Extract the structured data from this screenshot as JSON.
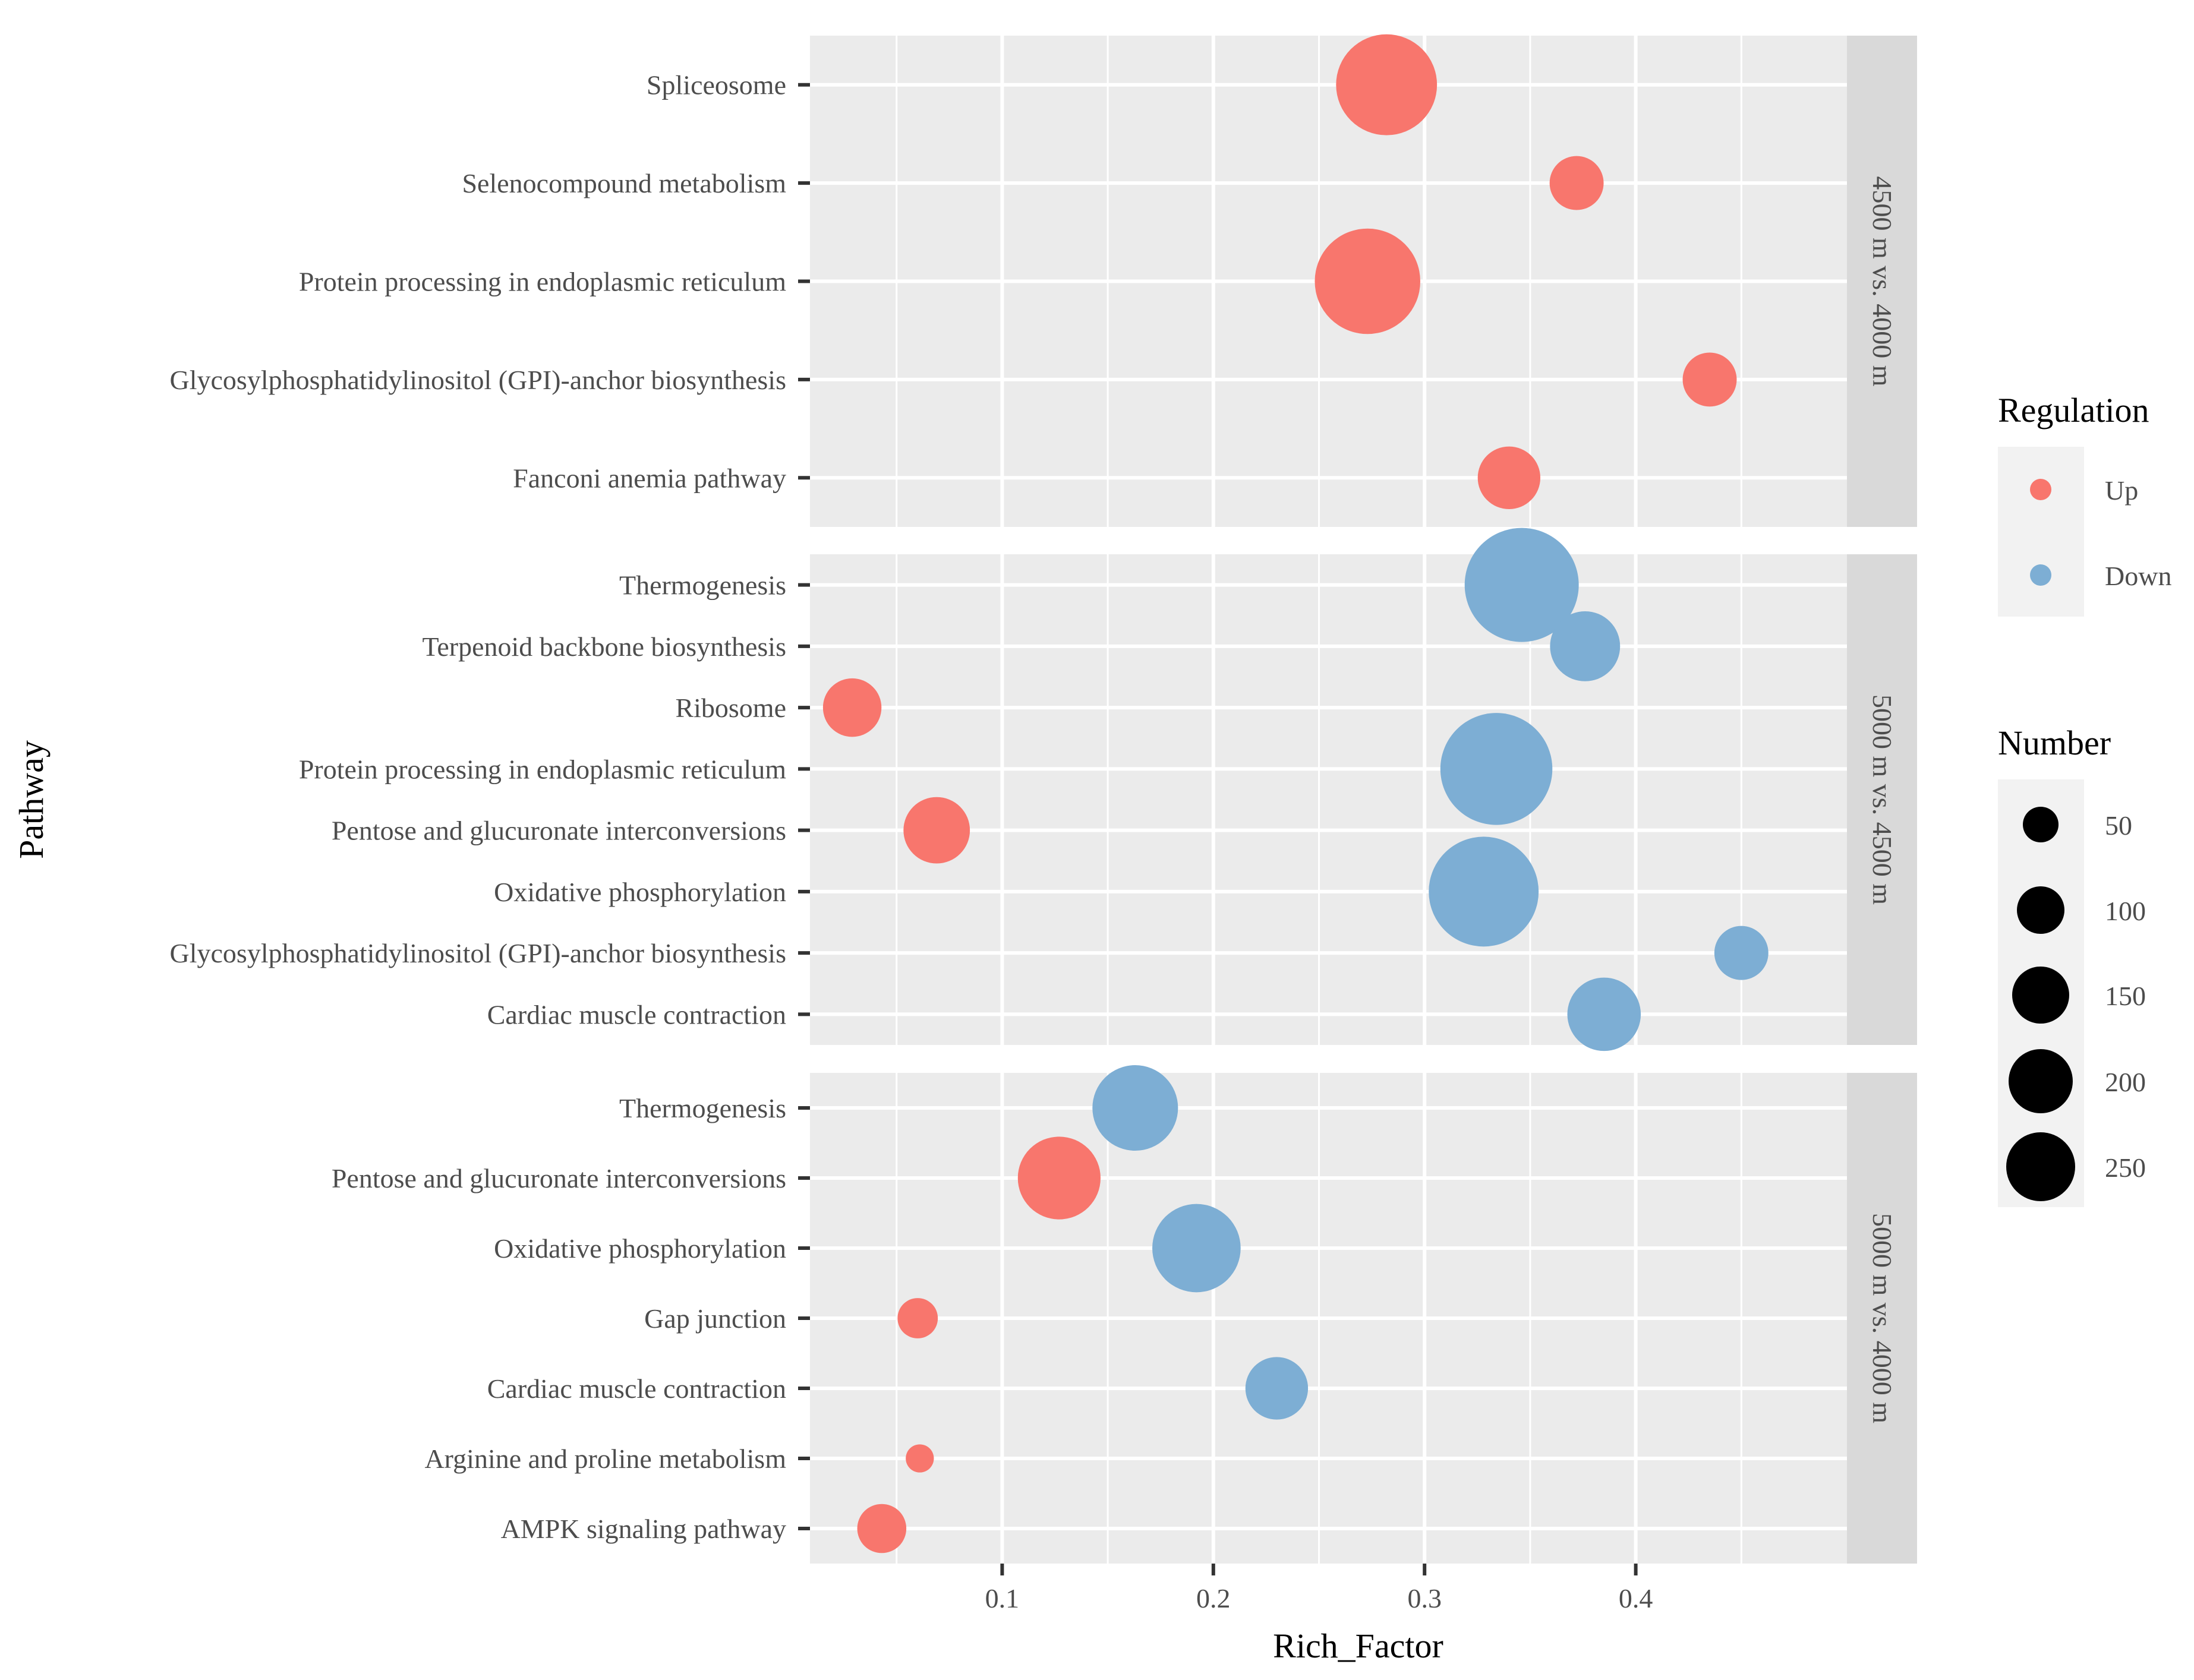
{
  "chart_data": {
    "type": "scatter",
    "xlabel": "Rich_Factor",
    "ylabel": "Pathway",
    "xlim": [
      0.009,
      0.5
    ],
    "xticks": [
      0.1,
      0.2,
      0.3,
      0.4
    ],
    "grid": true,
    "colors": {
      "Up": "#F8766D",
      "Down": "#7DAED4"
    },
    "panels": [
      {
        "label": "4500 m vs. 4000 m",
        "points": [
          {
            "pathway": "Spliceosome",
            "rich_factor": 0.282,
            "number": 200,
            "regulation": "Up"
          },
          {
            "pathway": "Selenocompound metabolism",
            "rich_factor": 0.372,
            "number": 50,
            "regulation": "Up"
          },
          {
            "pathway": "Protein processing in endoplasmic reticulum",
            "rich_factor": 0.273,
            "number": 220,
            "regulation": "Up"
          },
          {
            "pathway": "Glycosylphosphatidylinositol (GPI)-anchor biosynthesis",
            "rich_factor": 0.435,
            "number": 50,
            "regulation": "Up"
          },
          {
            "pathway": "Fanconi anemia pathway",
            "rich_factor": 0.34,
            "number": 70,
            "regulation": "Up"
          }
        ]
      },
      {
        "label": "5000 m vs. 4500 m",
        "points": [
          {
            "pathway": "Thermogenesis",
            "rich_factor": 0.346,
            "number": 260,
            "regulation": "Down"
          },
          {
            "pathway": "Terpenoid backbone biosynthesis",
            "rich_factor": 0.376,
            "number": 90,
            "regulation": "Down"
          },
          {
            "pathway": "Ribosome",
            "rich_factor": 0.029,
            "number": 60,
            "regulation": "Up"
          },
          {
            "pathway": "Protein processing in endoplasmic reticulum",
            "rich_factor": 0.334,
            "number": 250,
            "regulation": "Down"
          },
          {
            "pathway": "Pentose and glucuronate interconversions",
            "rich_factor": 0.069,
            "number": 80,
            "regulation": "Up"
          },
          {
            "pathway": "Oxidative phosphorylation",
            "rich_factor": 0.328,
            "number": 240,
            "regulation": "Down"
          },
          {
            "pathway": "Glycosylphosphatidylinositol (GPI)-anchor biosynthesis",
            "rich_factor": 0.45,
            "number": 50,
            "regulation": "Down"
          },
          {
            "pathway": "Cardiac muscle contraction",
            "rich_factor": 0.385,
            "number": 100,
            "regulation": "Down"
          }
        ]
      },
      {
        "label": "5000 m vs. 4000 m",
        "points": [
          {
            "pathway": "Thermogenesis",
            "rich_factor": 0.163,
            "number": 140,
            "regulation": "Down"
          },
          {
            "pathway": "Pentose and glucuronate interconversions",
            "rich_factor": 0.127,
            "number": 130,
            "regulation": "Up"
          },
          {
            "pathway": "Oxidative phosphorylation",
            "rich_factor": 0.192,
            "number": 150,
            "regulation": "Down"
          },
          {
            "pathway": "Gap junction",
            "rich_factor": 0.06,
            "number": 25,
            "regulation": "Up"
          },
          {
            "pathway": "Cardiac muscle contraction",
            "rich_factor": 0.23,
            "number": 70,
            "regulation": "Down"
          },
          {
            "pathway": "Arginine and proline metabolism",
            "rich_factor": 0.061,
            "number": 10,
            "regulation": "Up"
          },
          {
            "pathway": "AMPK signaling pathway",
            "rich_factor": 0.043,
            "number": 40,
            "regulation": "Up"
          }
        ]
      }
    ],
    "legend": {
      "color_title": "Regulation",
      "color_entries": [
        "Up",
        "Down"
      ],
      "size_title": "Number",
      "size_entries": [
        50,
        100,
        150,
        200,
        250
      ]
    }
  }
}
